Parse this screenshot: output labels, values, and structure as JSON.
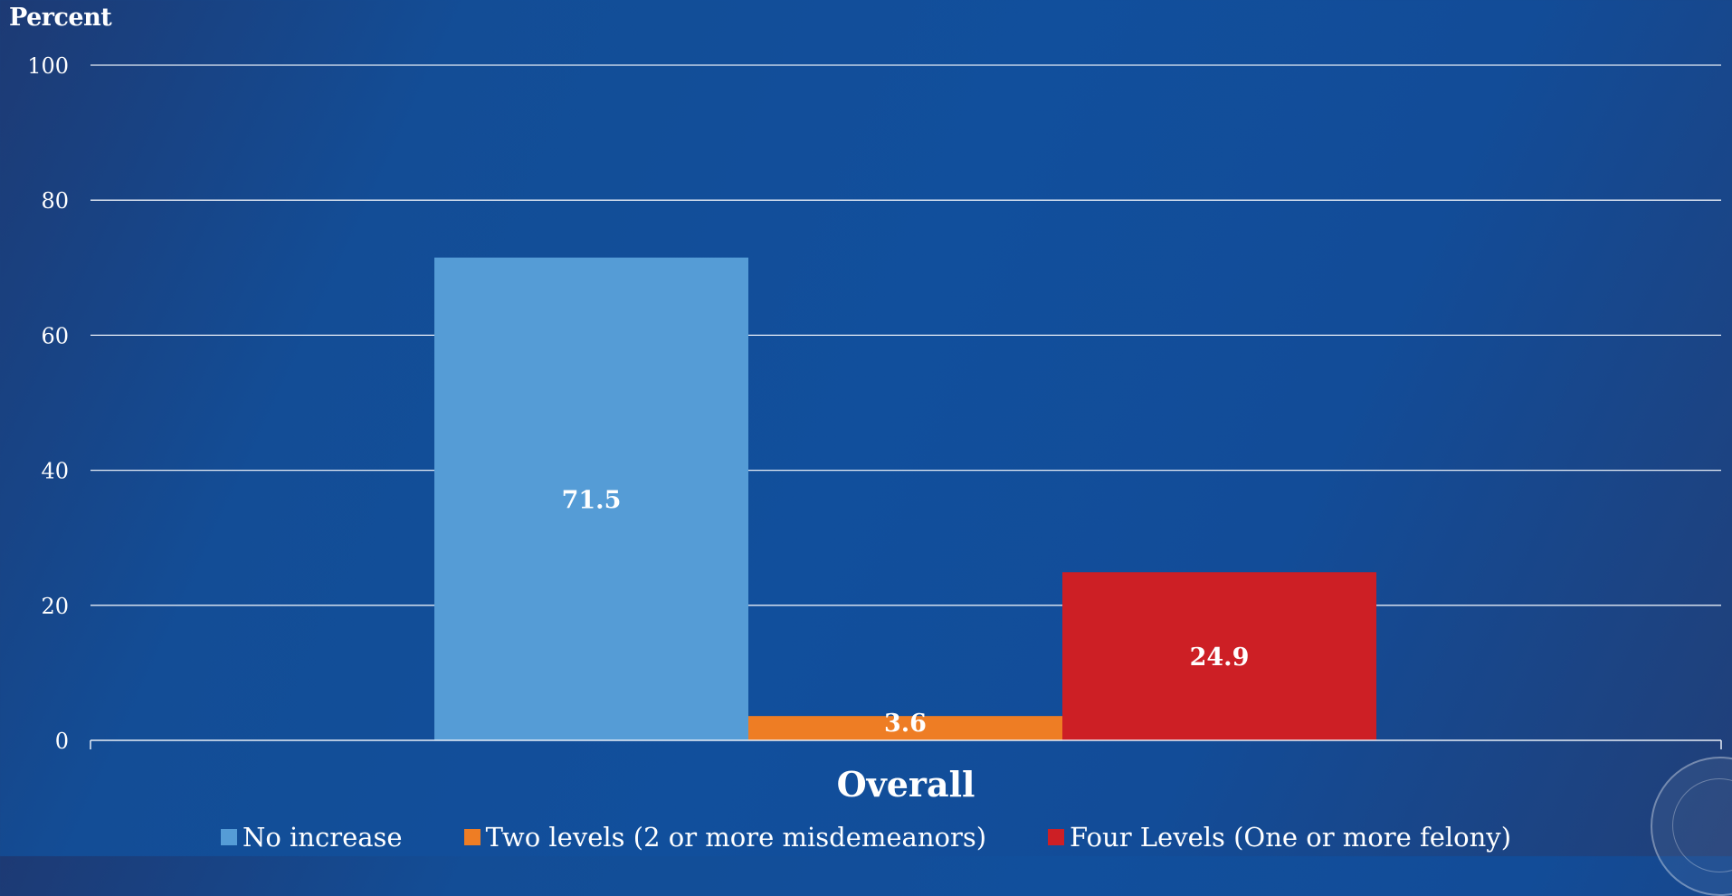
{
  "chart_data": {
    "type": "bar",
    "ylabel": "Percent",
    "ylim": [
      0,
      100
    ],
    "yticks": [
      0,
      20,
      40,
      60,
      80,
      100
    ],
    "categories": [
      "Overall"
    ],
    "series": [
      {
        "name": "No increase",
        "values": [
          71.5
        ],
        "color": "#559cd6"
      },
      {
        "name": "Two levels (2 or more misdemeanors)",
        "values": [
          3.6
        ],
        "color": "#ee7d24"
      },
      {
        "name": "Four Levels (One or more felony)",
        "values": [
          24.9
        ],
        "color": "#cd1f25"
      }
    ],
    "data_labels": [
      "71.5",
      "3.6",
      "24.9"
    ],
    "grid": true,
    "legend_position": "bottom"
  }
}
